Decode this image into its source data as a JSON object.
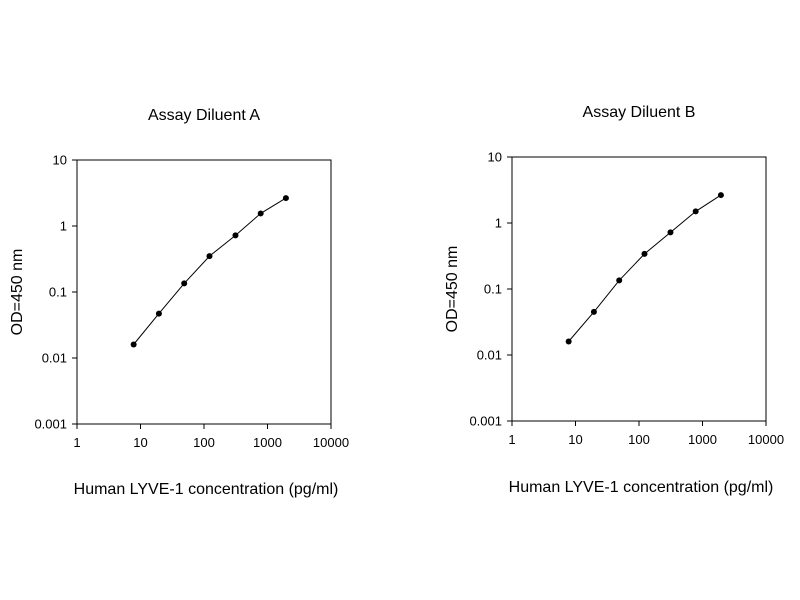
{
  "chart_data": [
    {
      "type": "scatter",
      "title": "Assay Diluent A",
      "xlabel": "Human LYVE-1 concentration (pg/ml)",
      "ylabel": "OD=450 nm",
      "x_scale": "log",
      "y_scale": "log",
      "xlim": [
        1,
        10000
      ],
      "ylim": [
        0.001,
        10
      ],
      "x_ticks": [
        "1",
        "10",
        "100",
        "1000",
        "10000"
      ],
      "y_ticks": [
        "0.001",
        "0.01",
        "0.1",
        "1",
        "10"
      ],
      "grid": false,
      "series": [
        {
          "x": [
            7.8,
            19.5,
            48.8,
            122,
            313,
            781,
            1950
          ],
          "y": [
            0.016,
            0.047,
            0.135,
            0.35,
            0.72,
            1.55,
            2.65
          ],
          "marker": "circle",
          "line": "connected"
        }
      ]
    },
    {
      "type": "scatter",
      "title": "Assay Diluent B",
      "xlabel": "Human LYVE-1 concentration (pg/ml)",
      "ylabel": "OD=450 nm",
      "x_scale": "log",
      "y_scale": "log",
      "xlim": [
        1,
        10000
      ],
      "ylim": [
        0.001,
        10
      ],
      "x_ticks": [
        "1",
        "10",
        "100",
        "1000",
        "10000"
      ],
      "y_ticks": [
        "0.001",
        "0.01",
        "0.1",
        "1",
        "10"
      ],
      "grid": false,
      "series": [
        {
          "x": [
            7.8,
            19.5,
            48.8,
            122,
            313,
            781,
            1950
          ],
          "y": [
            0.016,
            0.045,
            0.135,
            0.34,
            0.72,
            1.5,
            2.65
          ],
          "marker": "circle",
          "line": "connected"
        }
      ]
    }
  ]
}
